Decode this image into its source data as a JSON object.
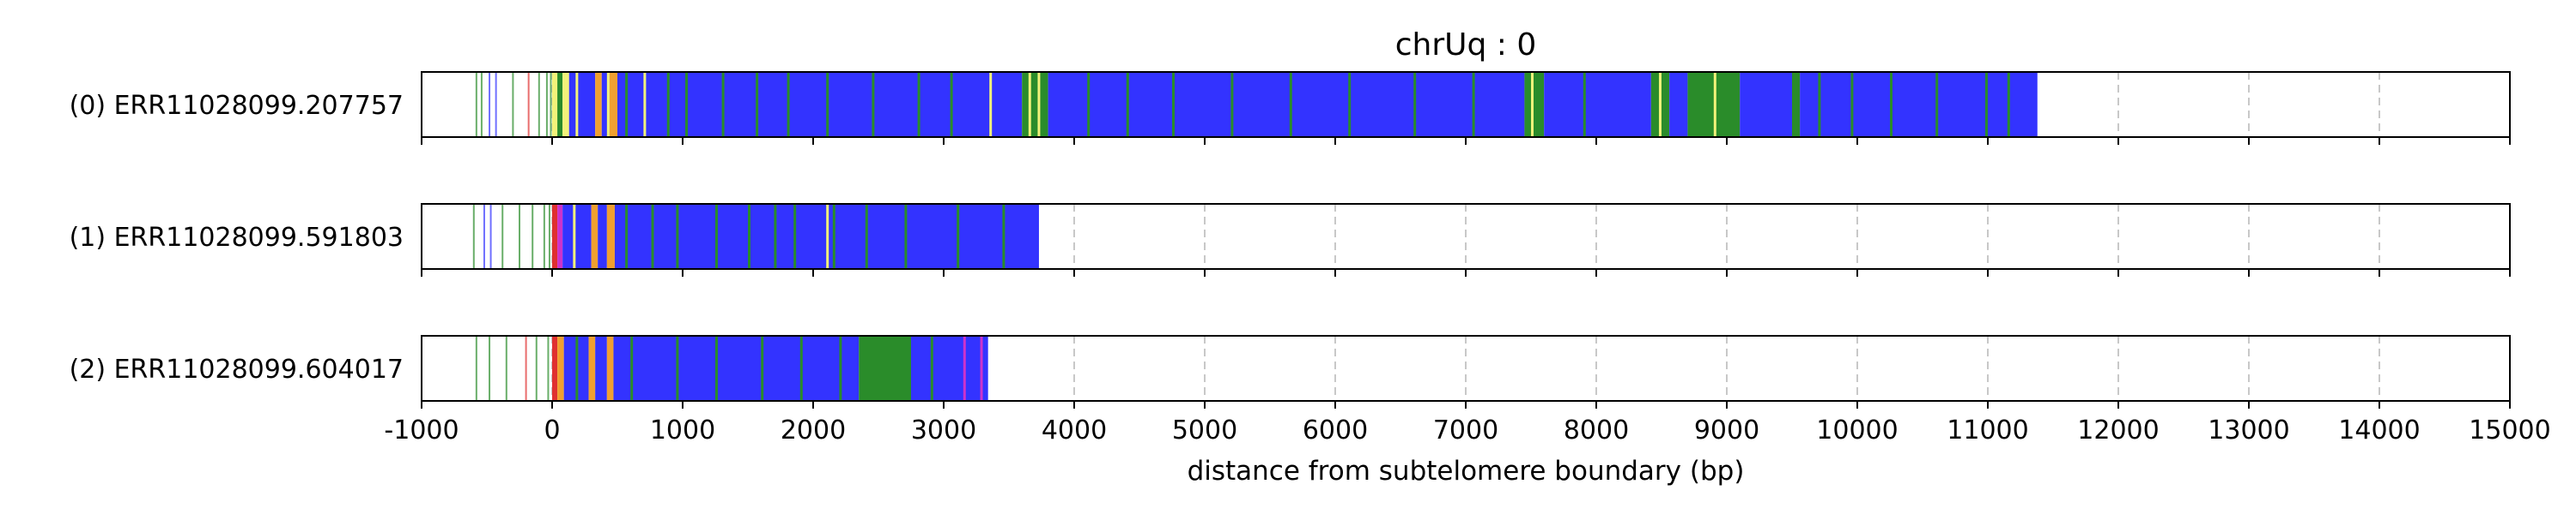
{
  "chart_data": {
    "type": "bar",
    "title": "chrUq : 0",
    "xlabel": "distance from subtelomere boundary (bp)",
    "ylabel": "",
    "xlim": [
      -1000,
      15000
    ],
    "xticks": [
      -1000,
      0,
      1000,
      2000,
      3000,
      4000,
      5000,
      6000,
      7000,
      8000,
      9000,
      10000,
      11000,
      12000,
      13000,
      14000,
      15000
    ],
    "grid": "x, dashed",
    "colors": {
      "blue": "#3333ff",
      "green": "#2a8c2a",
      "yellow": "#f2f27a",
      "orange": "#f0a030",
      "red": "#e03030",
      "magenta": "#cc33cc"
    },
    "reads": [
      {
        "label": "(0) ERR11028099.207757",
        "start": -1000,
        "end": 11380,
        "prefix_lines": [
          {
            "x": -580,
            "c": "green"
          },
          {
            "x": -540,
            "c": "green"
          },
          {
            "x": -480,
            "c": "blue"
          },
          {
            "x": -430,
            "c": "blue"
          },
          {
            "x": -300,
            "c": "green"
          },
          {
            "x": -180,
            "c": "red"
          },
          {
            "x": -100,
            "c": "green"
          },
          {
            "x": -40,
            "c": "green"
          },
          {
            "x": -10,
            "c": "green"
          }
        ],
        "segments": [
          {
            "from": 0,
            "to": 40,
            "c": "yellow"
          },
          {
            "from": 40,
            "to": 80,
            "c": "green"
          },
          {
            "from": 80,
            "to": 130,
            "c": "yellow"
          },
          {
            "from": 130,
            "to": 330,
            "c": "blue"
          },
          {
            "from": 330,
            "to": 380,
            "c": "orange"
          },
          {
            "from": 380,
            "to": 440,
            "c": "blue"
          },
          {
            "from": 440,
            "to": 500,
            "c": "orange"
          },
          {
            "from": 500,
            "to": 3600,
            "c": "blue"
          },
          {
            "from": 3600,
            "to": 3800,
            "c": "green"
          },
          {
            "from": 3800,
            "to": 7450,
            "c": "blue"
          },
          {
            "from": 7450,
            "to": 7600,
            "c": "green"
          },
          {
            "from": 7600,
            "to": 8420,
            "c": "blue"
          },
          {
            "from": 8420,
            "to": 8560,
            "c": "green"
          },
          {
            "from": 8560,
            "to": 8700,
            "c": "blue"
          },
          {
            "from": 8700,
            "to": 9100,
            "c": "green"
          },
          {
            "from": 9100,
            "to": 9500,
            "c": "blue"
          },
          {
            "from": 9500,
            "to": 9560,
            "c": "green"
          },
          {
            "from": 9560,
            "to": 11380,
            "c": "blue"
          }
        ],
        "marks": [
          {
            "x": 180,
            "c": "yellow"
          },
          {
            "x": 420,
            "c": "yellow"
          },
          {
            "x": 560,
            "c": "green"
          },
          {
            "x": 700,
            "c": "yellow"
          },
          {
            "x": 880,
            "c": "green"
          },
          {
            "x": 1020,
            "c": "green"
          },
          {
            "x": 1300,
            "c": "green"
          },
          {
            "x": 1560,
            "c": "green"
          },
          {
            "x": 1800,
            "c": "green"
          },
          {
            "x": 2100,
            "c": "green"
          },
          {
            "x": 2450,
            "c": "green"
          },
          {
            "x": 2800,
            "c": "green"
          },
          {
            "x": 3050,
            "c": "green"
          },
          {
            "x": 3350,
            "c": "yellow"
          },
          {
            "x": 3650,
            "c": "yellow"
          },
          {
            "x": 3720,
            "c": "yellow"
          },
          {
            "x": 4100,
            "c": "green"
          },
          {
            "x": 4400,
            "c": "green"
          },
          {
            "x": 4750,
            "c": "green"
          },
          {
            "x": 5200,
            "c": "green"
          },
          {
            "x": 5650,
            "c": "green"
          },
          {
            "x": 6100,
            "c": "green"
          },
          {
            "x": 6600,
            "c": "green"
          },
          {
            "x": 7050,
            "c": "green"
          },
          {
            "x": 7500,
            "c": "yellow"
          },
          {
            "x": 7900,
            "c": "green"
          },
          {
            "x": 8480,
            "c": "yellow"
          },
          {
            "x": 8900,
            "c": "yellow"
          },
          {
            "x": 9700,
            "c": "green"
          },
          {
            "x": 9950,
            "c": "green"
          },
          {
            "x": 10250,
            "c": "green"
          },
          {
            "x": 10600,
            "c": "green"
          },
          {
            "x": 10980,
            "c": "green"
          },
          {
            "x": 11150,
            "c": "green"
          }
        ]
      },
      {
        "label": "(1) ERR11028099.591803",
        "start": -1000,
        "end": 3730,
        "prefix_lines": [
          {
            "x": -600,
            "c": "green"
          },
          {
            "x": -520,
            "c": "blue"
          },
          {
            "x": -470,
            "c": "blue"
          },
          {
            "x": -380,
            "c": "green"
          },
          {
            "x": -250,
            "c": "green"
          },
          {
            "x": -150,
            "c": "green"
          },
          {
            "x": -60,
            "c": "green"
          },
          {
            "x": -20,
            "c": "green"
          }
        ],
        "segments": [
          {
            "from": 0,
            "to": 40,
            "c": "red"
          },
          {
            "from": 40,
            "to": 80,
            "c": "magenta"
          },
          {
            "from": 80,
            "to": 300,
            "c": "blue"
          },
          {
            "from": 300,
            "to": 350,
            "c": "orange"
          },
          {
            "from": 350,
            "to": 420,
            "c": "blue"
          },
          {
            "from": 420,
            "to": 480,
            "c": "orange"
          },
          {
            "from": 480,
            "to": 3730,
            "c": "blue"
          }
        ],
        "marks": [
          {
            "x": 160,
            "c": "yellow"
          },
          {
            "x": 560,
            "c": "green"
          },
          {
            "x": 760,
            "c": "green"
          },
          {
            "x": 950,
            "c": "green"
          },
          {
            "x": 1250,
            "c": "green"
          },
          {
            "x": 1500,
            "c": "green"
          },
          {
            "x": 1700,
            "c": "green"
          },
          {
            "x": 1850,
            "c": "green"
          },
          {
            "x": 2100,
            "c": "yellow"
          },
          {
            "x": 2150,
            "c": "green"
          },
          {
            "x": 2400,
            "c": "green"
          },
          {
            "x": 2700,
            "c": "green"
          },
          {
            "x": 3100,
            "c": "green"
          },
          {
            "x": 3450,
            "c": "green"
          }
        ]
      },
      {
        "label": "(2) ERR11028099.604017",
        "start": -1000,
        "end": 3340,
        "prefix_lines": [
          {
            "x": -580,
            "c": "green"
          },
          {
            "x": -480,
            "c": "green"
          },
          {
            "x": -350,
            "c": "green"
          },
          {
            "x": -200,
            "c": "red"
          },
          {
            "x": -120,
            "c": "green"
          },
          {
            "x": -30,
            "c": "green"
          }
        ],
        "segments": [
          {
            "from": 0,
            "to": 40,
            "c": "red"
          },
          {
            "from": 40,
            "to": 90,
            "c": "orange"
          },
          {
            "from": 90,
            "to": 280,
            "c": "blue"
          },
          {
            "from": 280,
            "to": 330,
            "c": "orange"
          },
          {
            "from": 330,
            "to": 420,
            "c": "blue"
          },
          {
            "from": 420,
            "to": 470,
            "c": "orange"
          },
          {
            "from": 470,
            "to": 2350,
            "c": "blue"
          },
          {
            "from": 2350,
            "to": 2750,
            "c": "green"
          },
          {
            "from": 2750,
            "to": 3340,
            "c": "blue"
          }
        ],
        "marks": [
          {
            "x": 180,
            "c": "green"
          },
          {
            "x": 600,
            "c": "green"
          },
          {
            "x": 950,
            "c": "green"
          },
          {
            "x": 1250,
            "c": "green"
          },
          {
            "x": 1600,
            "c": "green"
          },
          {
            "x": 1900,
            "c": "green"
          },
          {
            "x": 2200,
            "c": "green"
          },
          {
            "x": 2900,
            "c": "green"
          },
          {
            "x": 3150,
            "c": "magenta"
          },
          {
            "x": 3280,
            "c": "magenta"
          }
        ]
      }
    ]
  }
}
